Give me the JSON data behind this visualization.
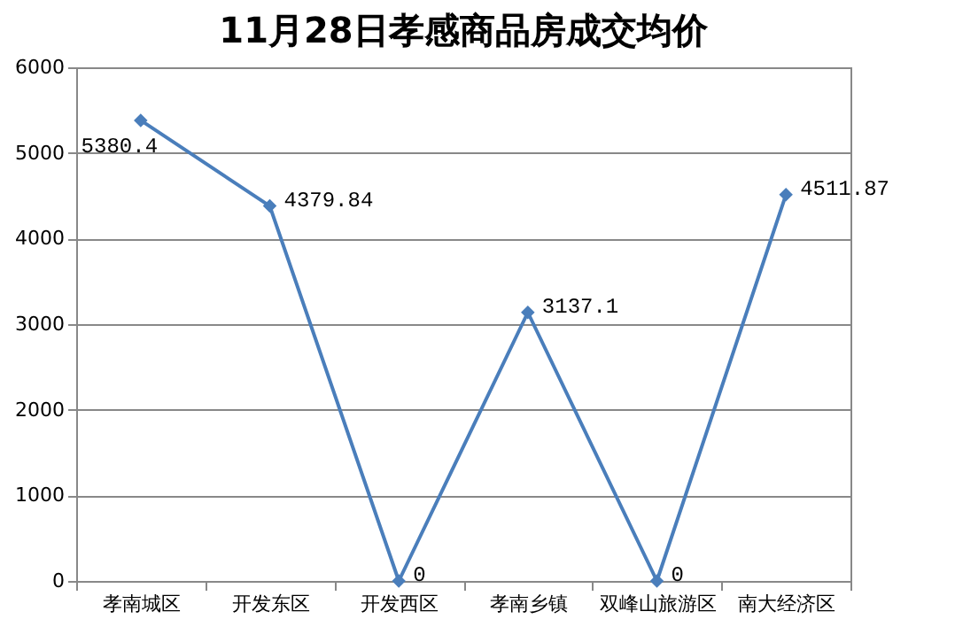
{
  "chart_data": {
    "type": "line",
    "title": "11月28日孝感商品房成交均价",
    "categories": [
      "孝南城区",
      "开发东区",
      "开发西区",
      "孝南乡镇",
      "双峰山旅游区",
      "南大经济区"
    ],
    "series": [
      {
        "color": "#4a7ebb",
        "values": [
          5380.4,
          4379.84,
          0,
          3137.1,
          0,
          4511.87
        ]
      }
    ],
    "ylim": [
      0,
      6000
    ],
    "yticks": [
      0,
      1000,
      2000,
      3000,
      4000,
      5000,
      6000
    ],
    "grid": "y",
    "marker": "diamond",
    "line_style": "solid",
    "data_labels": true
  }
}
